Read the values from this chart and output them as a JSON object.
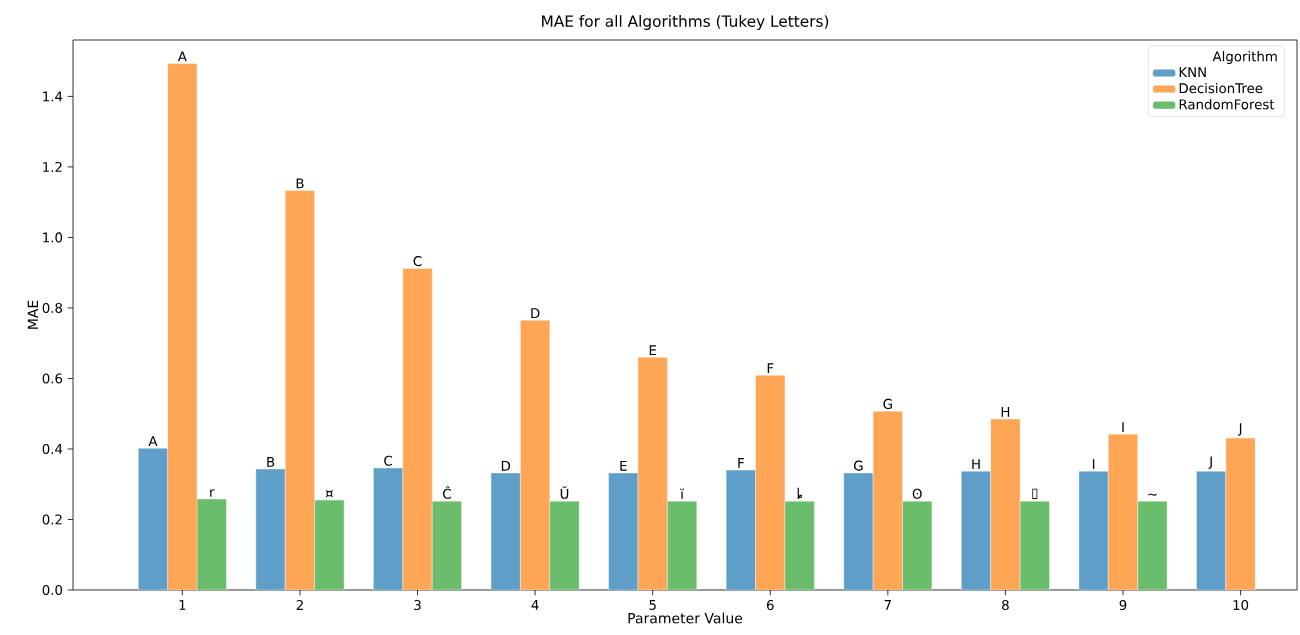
{
  "chart_data": {
    "type": "bar",
    "title": "MAE for all Algorithms (Tukey Letters)",
    "xlabel": "Parameter Value",
    "ylabel": "MAE",
    "legend_title": "Algorithm",
    "categories": [
      "1",
      "2",
      "3",
      "4",
      "5",
      "6",
      "7",
      "8",
      "9",
      "10"
    ],
    "series": [
      {
        "name": "KNN",
        "color": "#5f9ec9",
        "values": [
          0.402,
          0.343,
          0.346,
          0.332,
          0.332,
          0.34,
          0.332,
          0.337,
          0.337,
          0.337
        ],
        "value_labels": [
          "A",
          "B",
          "C",
          "D",
          "E",
          "F",
          "G",
          "H",
          "I",
          "J"
        ]
      },
      {
        "name": "DecisionTree",
        "color": "#ffa556",
        "values": [
          1.493,
          1.133,
          0.912,
          0.765,
          0.66,
          0.609,
          0.507,
          0.485,
          0.442,
          0.431
        ],
        "value_labels": [
          "A",
          "B",
          "C",
          "D",
          "E",
          "F",
          "G",
          "H",
          "I",
          "J"
        ]
      },
      {
        "name": "RandomForest",
        "color": "#6abd6a",
        "values": [
          0.258,
          0.255,
          0.252,
          0.252,
          0.252,
          0.252,
          0.252,
          0.252,
          0.252,
          null
        ],
        "value_labels": [
          "r",
          "¤",
          "Ĉ",
          "Ŭ",
          "ĭ",
          "ȴ",
          "ʘ",
          "▯",
          "~",
          null
        ]
      }
    ],
    "ylim": [
      0,
      1.56
    ],
    "yticks": [
      {
        "value": 0,
        "label": "0.0"
      },
      {
        "value": 0.2,
        "label": "0.2"
      },
      {
        "value": 0.4,
        "label": "0.4"
      },
      {
        "value": 0.6,
        "label": "0.6"
      },
      {
        "value": 0.8,
        "label": "0.8"
      },
      {
        "value": 1.0,
        "label": "1.0"
      },
      {
        "value": 1.2,
        "label": "1.2"
      },
      {
        "value": 1.4,
        "label": "1.4"
      }
    ],
    "grid": false,
    "legend": "top right"
  }
}
